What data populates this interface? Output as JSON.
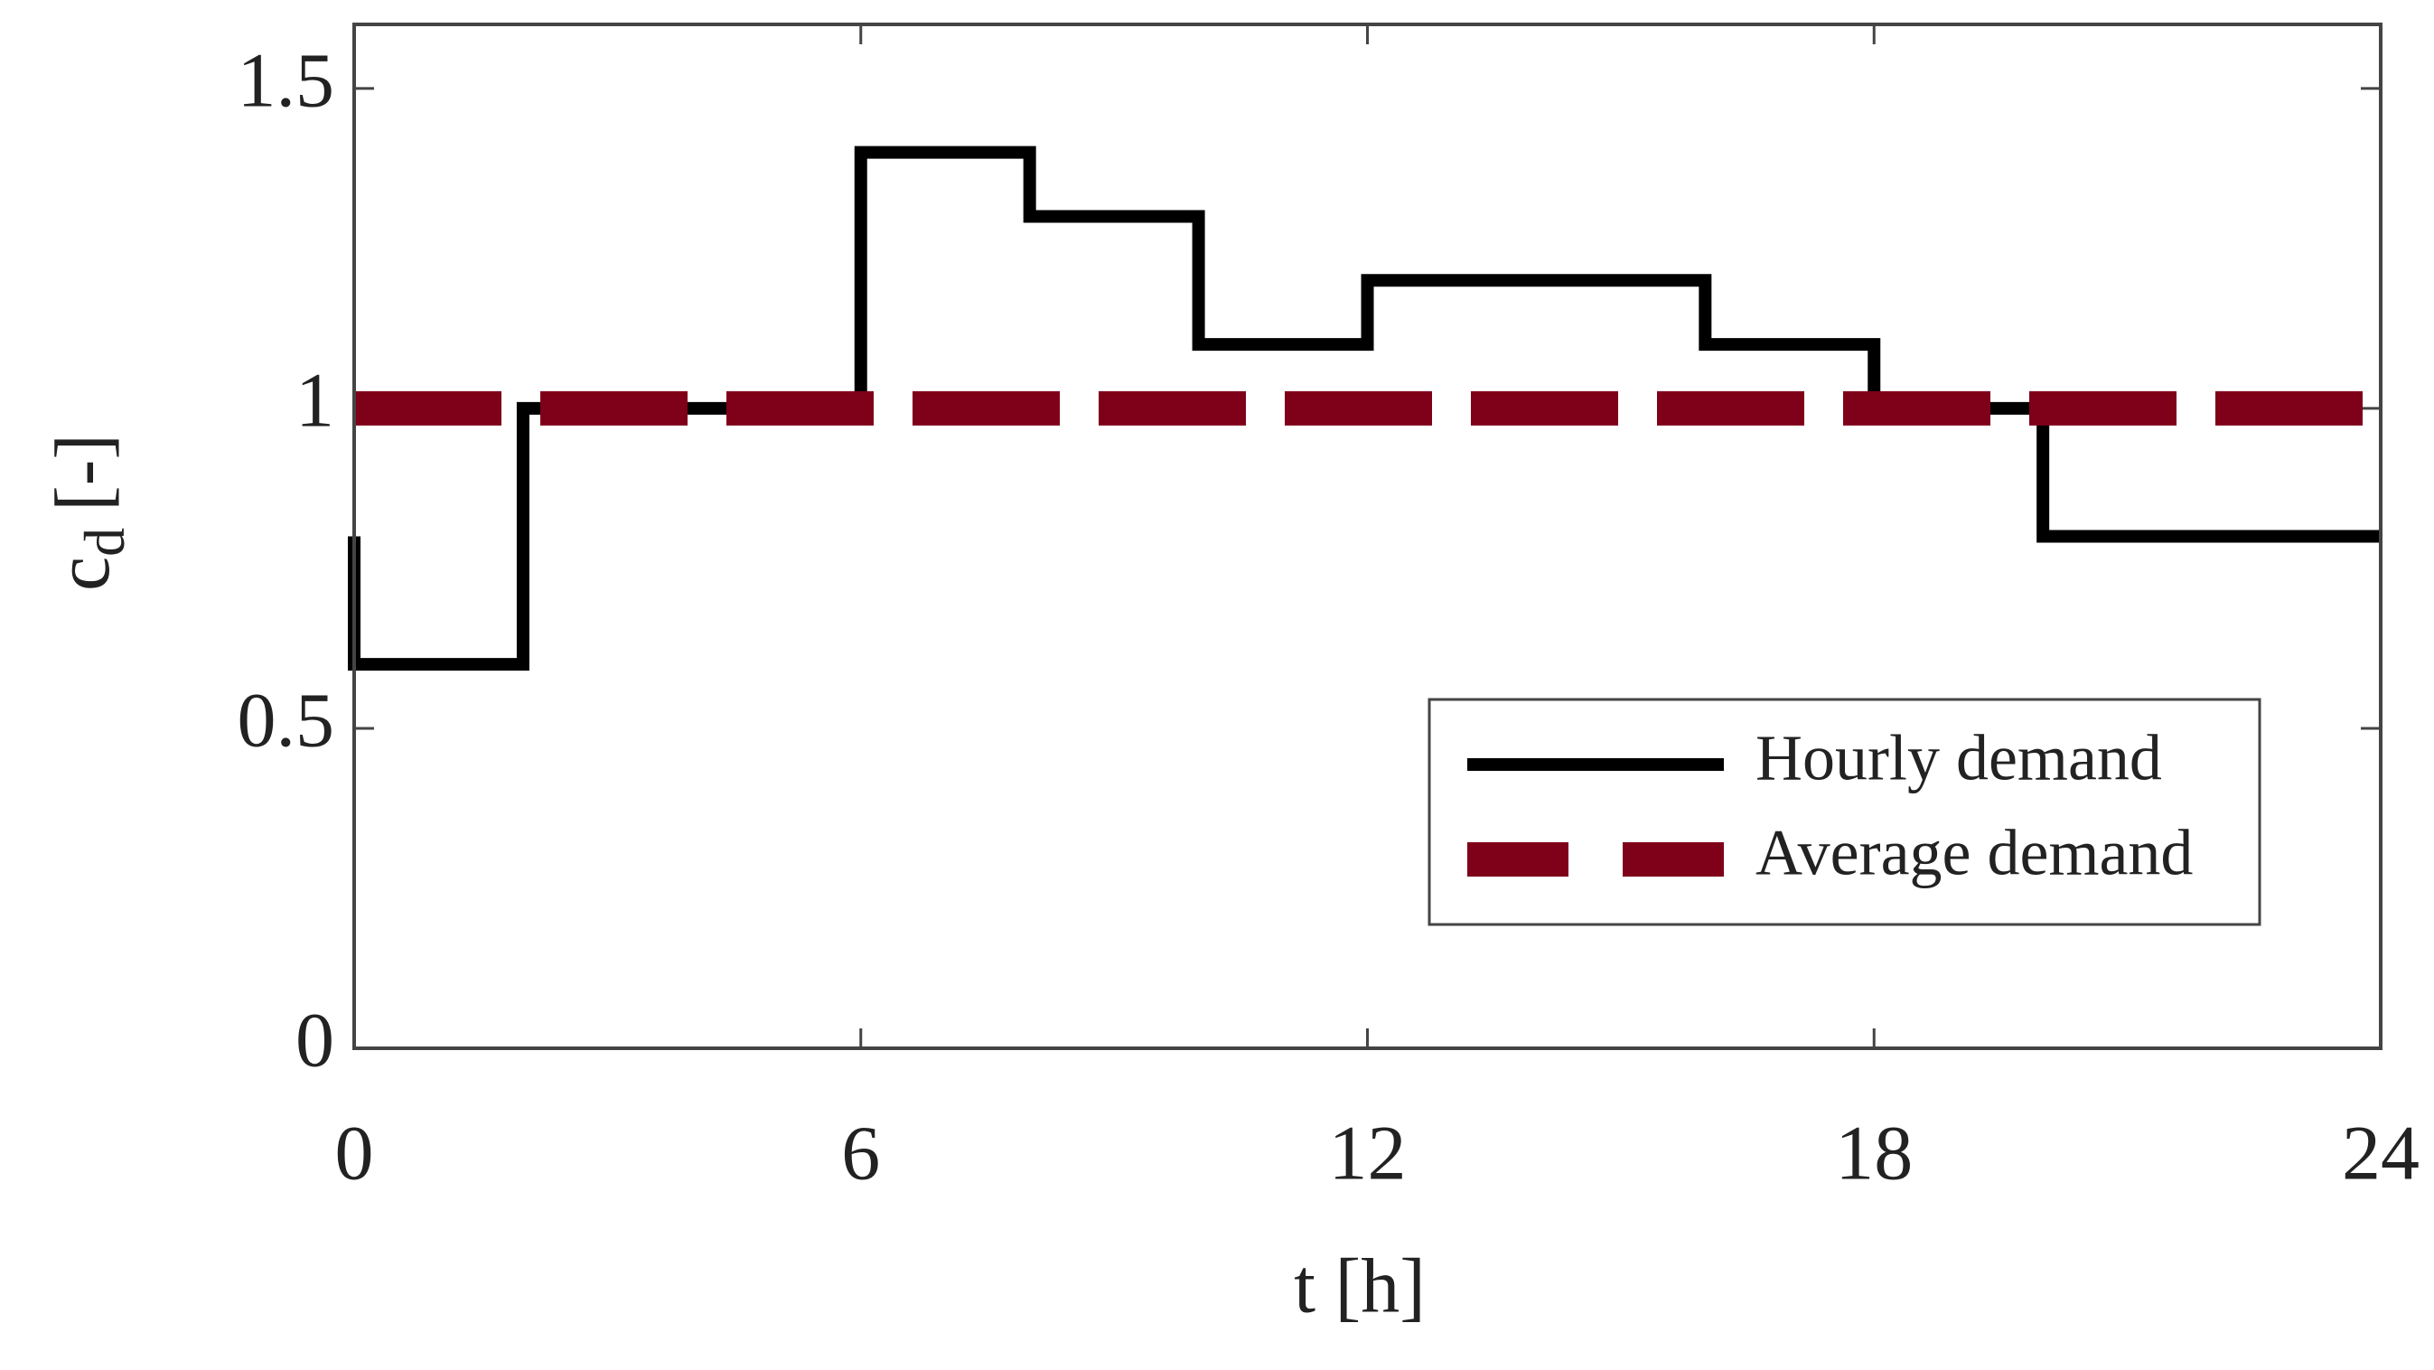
{
  "chart_data": {
    "type": "line",
    "step": "post",
    "xlabel": "t [h]",
    "ylabel": {
      "main": "c",
      "sub": "d",
      "unit": "[-]"
    },
    "xlim": [
      0,
      24
    ],
    "ylim": [
      0,
      1.6
    ],
    "xticks": [
      0,
      6,
      12,
      18,
      24
    ],
    "yticks": [
      0,
      0.5,
      1,
      1.5
    ],
    "legend": "lower right",
    "series": [
      {
        "name": "Hourly demand",
        "color": "#000000",
        "dash": false,
        "x": [
          0,
          2,
          6,
          8,
          10,
          12,
          16,
          18,
          20,
          22
        ],
        "values": [
          0.8,
          0.6,
          1.0,
          1.4,
          1.3,
          1.1,
          1.2,
          1.1,
          1.0,
          0.8
        ]
      },
      {
        "name": "Average demand",
        "color": "#7f0019",
        "dash": true,
        "x": [
          0,
          24
        ],
        "values": [
          1,
          1
        ]
      }
    ]
  }
}
